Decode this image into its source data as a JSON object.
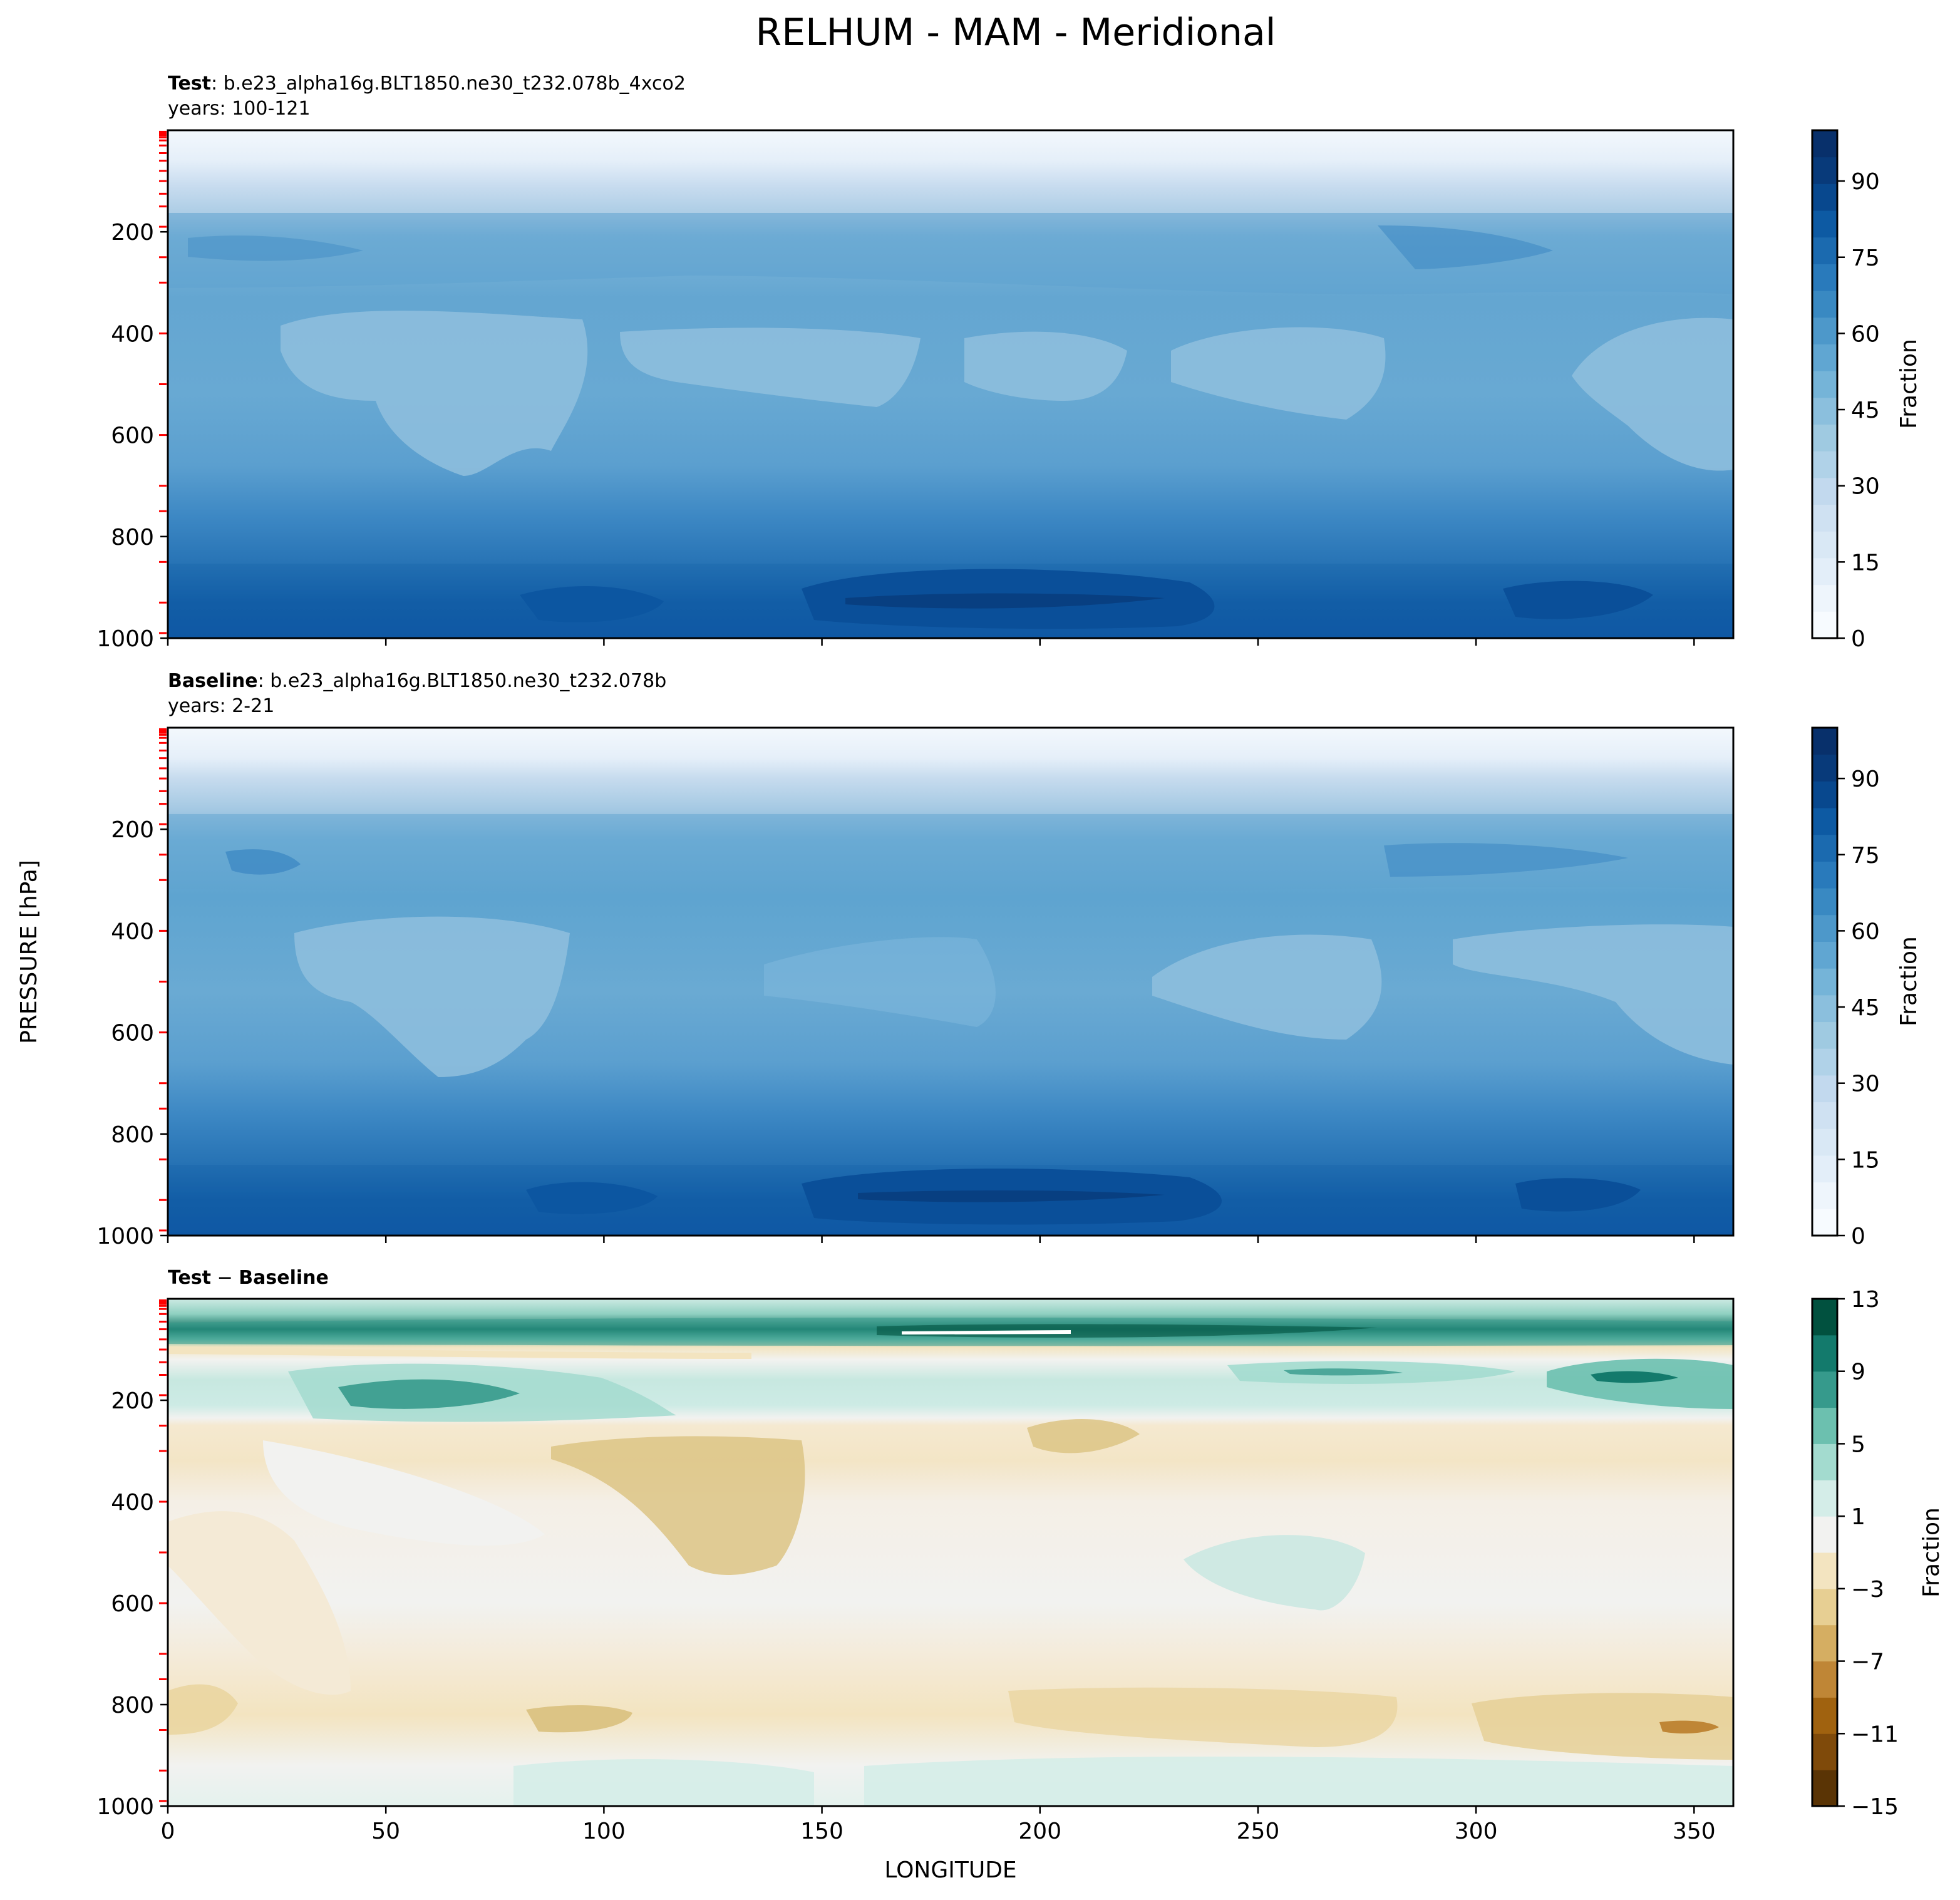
{
  "figure": {
    "title": "RELHUM - MAM - Meridional"
  },
  "chart_data": [
    {
      "type": "contour",
      "panel": "test",
      "header_bold": "Test",
      "header_rest": ": b.e23_alpha16g.BLT1850.ne30_t232.078b_4xco2",
      "years": "years: 100-121",
      "xlim": [
        0,
        359
      ],
      "ylim": [
        1000,
        0
      ],
      "yticks": [
        "200",
        "400",
        "600",
        "800",
        "1000"
      ],
      "yticks_values": [
        200,
        400,
        600,
        800,
        1000
      ],
      "xticks_values": [
        0,
        50,
        100,
        150,
        200,
        250,
        300,
        350
      ],
      "colormap": "Blues",
      "colorbar": {
        "label": "Fraction",
        "range": [
          0,
          100
        ],
        "tick_values": [
          0,
          15,
          30,
          45,
          60,
          75,
          90
        ],
        "tick_labels": [
          "0",
          "15",
          "30",
          "45",
          "60",
          "75",
          "90"
        ],
        "colors": [
          "#f7fbff",
          "#eef5fc",
          "#e3eef9",
          "#d9e8f5",
          "#cfe1f2",
          "#c2d9ee",
          "#b0d2e8",
          "#9fcae1",
          "#8bbfdd",
          "#75b4d8",
          "#60a6d2",
          "#4d98ca",
          "#3989c2",
          "#297abb",
          "#1b6aaf",
          "#0d5aa3",
          "#08488e",
          "#083a7a",
          "#08306b"
        ]
      },
      "description": "Relative humidity zonal-meridional mean: low (<30) above 150 hPa, 45-60 in mid troposphere, maxima 85-95 near 900-950 hPa between 150 and 230 longitude and near 320"
    },
    {
      "type": "contour",
      "panel": "baseline",
      "header_bold": "Baseline",
      "header_rest": ": b.e23_alpha16g.BLT1850.ne30_t232.078b",
      "years": "years: 2-21",
      "xlim": [
        0,
        359
      ],
      "ylim": [
        1000,
        0
      ],
      "yticks": [
        "200",
        "400",
        "600",
        "800",
        "1000"
      ],
      "yticks_values": [
        200,
        400,
        600,
        800,
        1000
      ],
      "xticks_values": [
        0,
        50,
        100,
        150,
        200,
        250,
        300,
        350
      ],
      "colormap": "Blues",
      "colorbar": {
        "label": "Fraction",
        "range": [
          0,
          100
        ],
        "tick_values": [
          0,
          15,
          30,
          45,
          60,
          75,
          90
        ],
        "tick_labels": [
          "0",
          "15",
          "30",
          "45",
          "60",
          "75",
          "90"
        ],
        "colors": [
          "#f7fbff",
          "#eef5fc",
          "#e3eef9",
          "#d9e8f5",
          "#cfe1f2",
          "#c2d9ee",
          "#b0d2e8",
          "#9fcae1",
          "#8bbfdd",
          "#75b4d8",
          "#60a6d2",
          "#4d98ca",
          "#3989c2",
          "#297abb",
          "#1b6aaf",
          "#0d5aa3",
          "#08488e",
          "#083a7a",
          "#08306b"
        ]
      }
    },
    {
      "type": "contour",
      "panel": "difference",
      "header_bold_1": "Test",
      "header_sep": " − ",
      "header_bold_2": "Baseline",
      "xlim": [
        0,
        359
      ],
      "ylim": [
        1000,
        0
      ],
      "xlabel": "LONGITUDE",
      "xticks": [
        "0",
        "50",
        "100",
        "150",
        "200",
        "250",
        "300",
        "350"
      ],
      "xticks_values": [
        0,
        50,
        100,
        150,
        200,
        250,
        300,
        350
      ],
      "yticks": [
        "200",
        "400",
        "600",
        "800",
        "1000"
      ],
      "yticks_values": [
        200,
        400,
        600,
        800,
        1000
      ],
      "colormap": "BrBG",
      "colorbar": {
        "label": "Fraction",
        "range": [
          -15,
          13
        ],
        "tick_values": [
          -15,
          -11,
          -7,
          -3,
          1,
          5,
          9,
          13
        ],
        "tick_labels": [
          "−15",
          "−11",
          "−7",
          "−3",
          "1",
          "5",
          "9",
          "13"
        ],
        "levels": [
          -15,
          -13,
          -11,
          -9,
          -7,
          -5,
          -3,
          -1,
          1,
          3,
          5,
          7,
          9,
          11,
          13
        ],
        "colors": [
          "#5a3405",
          "#7f4a0a",
          "#a0620f",
          "#bf8636",
          "#d5ae62",
          "#e7cf93",
          "#f3e4c0",
          "#f2f2f0",
          "#d4ede8",
          "#a3dbcf",
          "#6cc0af",
          "#369a8c",
          "#137a6c",
          "#01513f"
        ]
      },
      "description": "Positive anomaly band 5-13 near 50-80 hPa, positive 5-9 near 150-200 hPa; negative -3 to -7 in the mid troposphere 100-140 lon and near 850 hPa"
    }
  ],
  "shared_ylabel": "PRESSURE [hPa]",
  "colors": {
    "axis": "#000000",
    "model_level_ticks": "#ff0000"
  }
}
